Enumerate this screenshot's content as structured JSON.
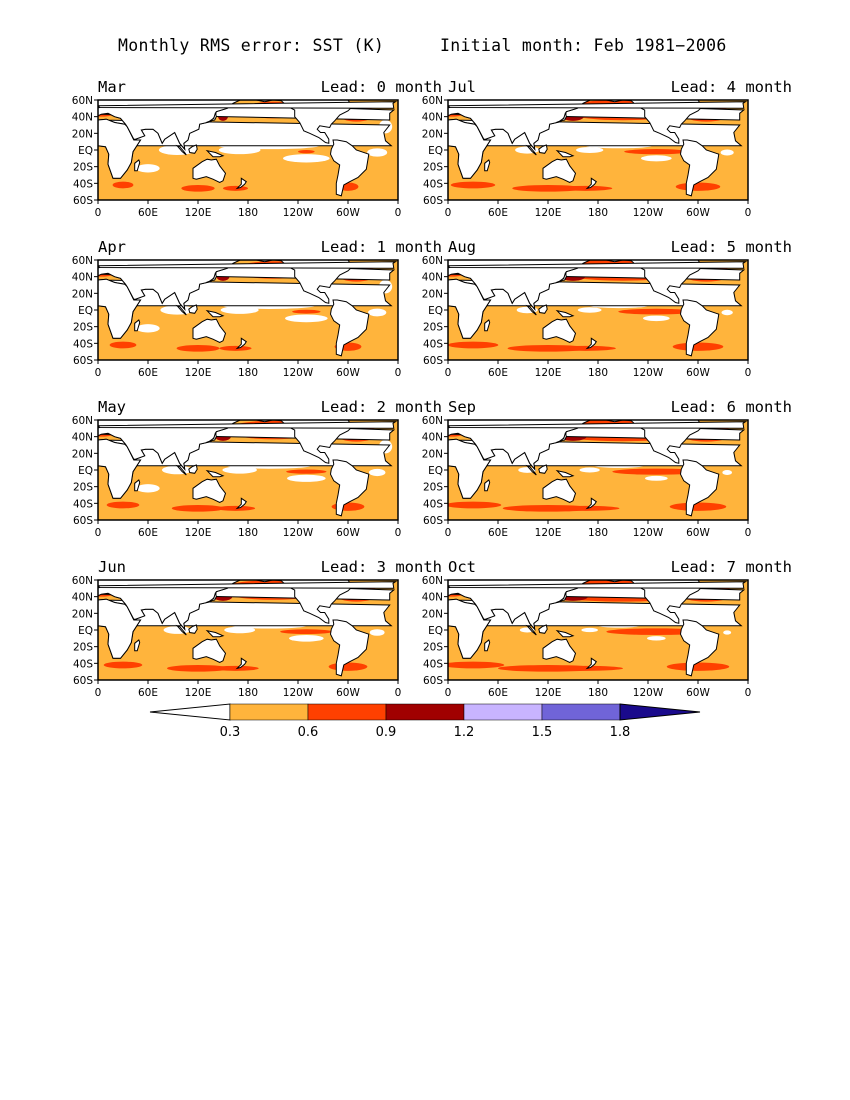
{
  "figure": {
    "title": "Monthly RMS error: SST (K)",
    "subtitle": "Initial month: Feb 1981−2006"
  },
  "axes": {
    "lat_labels": [
      "60N",
      "40N",
      "20N",
      "EQ",
      "20S",
      "40S",
      "60S"
    ],
    "lon_labels": [
      "0",
      "60E",
      "120E",
      "180",
      "120W",
      "60W",
      "0"
    ]
  },
  "colors": {
    "below_03": "#ffffff",
    "c_03_06": "#ffb43c",
    "c_06_09": "#ff4000",
    "c_09_12": "#a00000",
    "c_12_15": "#c8b4ff",
    "c_15_18": "#7064d8",
    "above_18": "#1a0a8c",
    "land": "#ffffff"
  },
  "chart_data": {
    "type": "heatmap",
    "variable": "SST",
    "units": "K",
    "metric": "Monthly RMS error",
    "initial_month": "Feb",
    "years": "1981−2006",
    "colorbar": {
      "levels": [
        0.3,
        0.6,
        0.9,
        1.2,
        1.5,
        1.8
      ],
      "labels": [
        "0.3",
        "0.6",
        "0.9",
        "1.2",
        "1.5",
        "1.8"
      ],
      "extend": "both"
    },
    "panels": [
      {
        "month": "Mar",
        "lead_label": "Lead: 0 month",
        "lead": 0,
        "column": "left",
        "row": 0
      },
      {
        "month": "Apr",
        "lead_label": "Lead: 1 month",
        "lead": 1,
        "column": "left",
        "row": 1
      },
      {
        "month": "May",
        "lead_label": "Lead: 2 month",
        "lead": 2,
        "column": "left",
        "row": 2
      },
      {
        "month": "Jun",
        "lead_label": "Lead: 3 month",
        "lead": 3,
        "column": "left",
        "row": 3
      },
      {
        "month": "Jul",
        "lead_label": "Lead: 4 month",
        "lead": 4,
        "column": "right",
        "row": 0
      },
      {
        "month": "Aug",
        "lead_label": "Lead: 5 month",
        "lead": 5,
        "column": "right",
        "row": 1
      },
      {
        "month": "Sep",
        "lead_label": "Lead: 6 month",
        "lead": 6,
        "column": "right",
        "row": 2
      },
      {
        "month": "Oct",
        "lead_label": "Lead: 7 month",
        "lead": 7,
        "column": "right",
        "row": 3
      }
    ]
  }
}
